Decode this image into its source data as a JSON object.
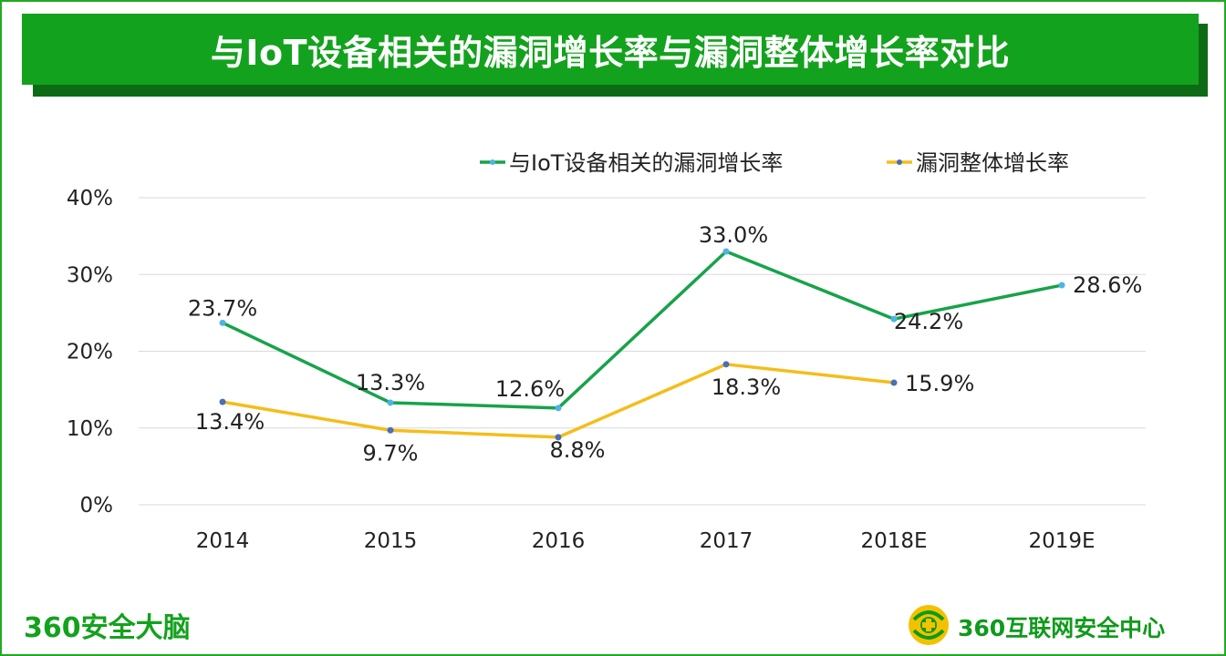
{
  "page": {
    "title": "与IoT设备相关的漏洞增长率与漏洞整体增长率对比",
    "brand_left": "360安全大脑",
    "brand_right": "360互联网安全中心",
    "logo_icon": "360-shield-logo-icon"
  },
  "colors": {
    "frame": "#22aa22",
    "title_bg": "#13a21d",
    "title_shadow": "#0d6b16",
    "series_iot": "#17a34a",
    "series_all": "#f5bd1a",
    "marker_iot": "#4fb3e8",
    "marker_all": "#4a6fb5",
    "grid": "#d9d9d9",
    "text": "#222222"
  },
  "chart_data": {
    "type": "line",
    "categories": [
      "2014",
      "2015",
      "2016",
      "2017",
      "2018E",
      "2019E"
    ],
    "series": [
      {
        "name": "与IoT设备相关的漏洞增长率",
        "values": [
          23.7,
          13.3,
          12.6,
          33.0,
          24.2,
          28.6
        ],
        "labels": [
          "23.7%",
          "13.3%",
          "12.6%",
          "33.0%",
          "24.2%",
          "28.6%"
        ]
      },
      {
        "name": "漏洞整体增长率",
        "values": [
          13.4,
          9.7,
          8.8,
          18.3,
          15.9,
          null
        ],
        "labels": [
          "13.4%",
          "9.7%",
          "8.8%",
          "18.3%",
          "15.9%",
          null
        ]
      }
    ],
    "yticks": [
      "0%",
      "10%",
      "20%",
      "30%",
      "40%"
    ],
    "ylim": [
      0,
      40
    ],
    "grid": true,
    "legend_position": "top"
  }
}
